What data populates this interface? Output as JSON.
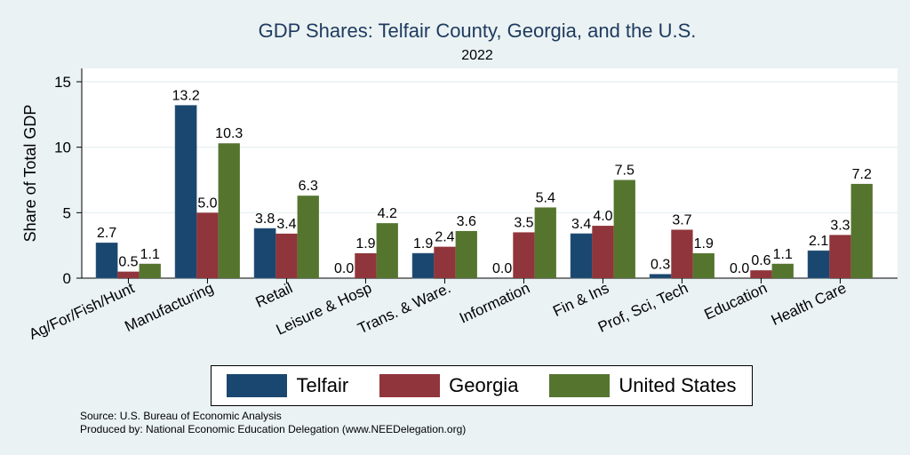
{
  "chart_data": {
    "type": "bar",
    "title": "GDP Shares: Telfair County, Georgia, and the U.S.",
    "subtitle": "2022",
    "xlabel": "",
    "ylabel": "Share of Total GDP",
    "ylim": [
      0,
      15
    ],
    "yticks": [
      0,
      5,
      10,
      15
    ],
    "grid": true,
    "legend_position": "bottom",
    "categories": [
      "Ag/For/Fish/Hunt",
      "Manufacturing",
      "Retail",
      "Leisure & Hosp",
      "Trans. & Ware.",
      "Information",
      "Fin & Ins",
      "Prof, Sci, Tech",
      "Education",
      "Health Care"
    ],
    "series": [
      {
        "name": "Telfair",
        "color": "#1a476f",
        "values": [
          2.7,
          13.2,
          3.8,
          0.0,
          1.9,
          0.0,
          3.4,
          0.3,
          0.0,
          2.1
        ]
      },
      {
        "name": "Georgia",
        "color": "#90353b",
        "values": [
          0.5,
          5.0,
          3.4,
          1.9,
          2.4,
          3.5,
          4.0,
          3.7,
          0.6,
          3.3
        ]
      },
      {
        "name": "United States",
        "color": "#55752f",
        "values": [
          1.1,
          10.3,
          6.3,
          4.2,
          3.6,
          5.4,
          7.5,
          1.9,
          1.1,
          7.2
        ]
      }
    ]
  },
  "source": "Source: U.S. Bureau of Economic Analysis",
  "produced": "Produced by: National Economic Education Delegation (www.NEEDelegation.org)"
}
